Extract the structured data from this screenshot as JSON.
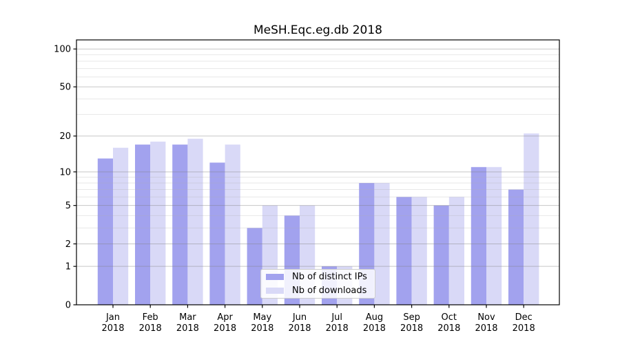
{
  "title": "MeSH.Eqc.eg.db 2018",
  "colors": {
    "ips_bar": "#a2a2ee",
    "downloads_bar": "#d9d9f7",
    "grid_major": "#808080",
    "grid_minor": "#b0b0b0",
    "axis": "#000000",
    "legend_border": "#cccccc"
  },
  "legend": {
    "items": [
      {
        "label": "Nb of distinct IPs",
        "color_key": "ips_bar"
      },
      {
        "label": "Nb of downloads",
        "color_key": "downloads_bar"
      }
    ],
    "position": "lower center"
  },
  "chart_data": {
    "type": "bar",
    "title": "MeSH.Eqc.eg.db 2018",
    "categories": [
      "Jan",
      "Feb",
      "Mar",
      "Apr",
      "May",
      "Jun",
      "Jul",
      "Aug",
      "Sep",
      "Oct",
      "Nov",
      "Dec"
    ],
    "x_tick_year": "2018",
    "series": [
      {
        "name": "Nb of distinct IPs",
        "values": [
          13,
          17,
          17,
          12,
          3,
          4,
          1,
          8,
          6,
          5,
          11,
          7
        ]
      },
      {
        "name": "Nb of downloads",
        "values": [
          16,
          18,
          19,
          17,
          5,
          5,
          1,
          8,
          6,
          6,
          11,
          21
        ]
      }
    ],
    "yscale": "log10(1+x)",
    "y_major_ticks": [
      0,
      1,
      2,
      5,
      10,
      20,
      50,
      100
    ],
    "y_minor_gridlines": [
      3,
      4,
      6,
      7,
      8,
      9,
      30,
      40,
      60,
      70,
      80,
      90
    ],
    "ylim": [
      0,
      118
    ],
    "grid": "on",
    "xlabel": "",
    "ylabel": ""
  }
}
